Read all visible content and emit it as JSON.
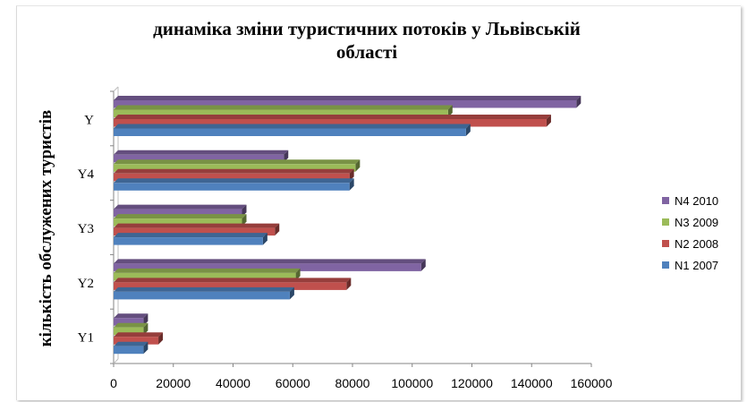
{
  "chart_data": {
    "type": "bar",
    "orientation": "horizontal",
    "title_lines": [
      "динаміка зміни туристичних потоків у Львівській",
      "області"
    ],
    "ylabel": "кількість обслужених туристів",
    "xlabel": "",
    "categories": [
      "Y1",
      "Y2",
      "Y3",
      "Y4",
      "Y"
    ],
    "x_ticks": [
      "0",
      "20000",
      "40000",
      "60000",
      "80000",
      "100000",
      "120000",
      "140000",
      "160000"
    ],
    "xlim": [
      0,
      160000
    ],
    "legend_position": "right",
    "grid": false,
    "series": [
      {
        "name": "N1 2007",
        "color": "#4f81bd",
        "values": [
          10000,
          59000,
          50000,
          79000,
          118000
        ]
      },
      {
        "name": "N2 2008",
        "color": "#c0504d",
        "values": [
          15000,
          78000,
          54000,
          79000,
          145000
        ]
      },
      {
        "name": "N3 2009",
        "color": "#9bbb59",
        "values": [
          10000,
          61000,
          43000,
          81000,
          112000
        ]
      },
      {
        "name": "N4 2010",
        "color": "#8064a2",
        "values": [
          10000,
          103000,
          43000,
          57000,
          155000
        ]
      }
    ]
  }
}
